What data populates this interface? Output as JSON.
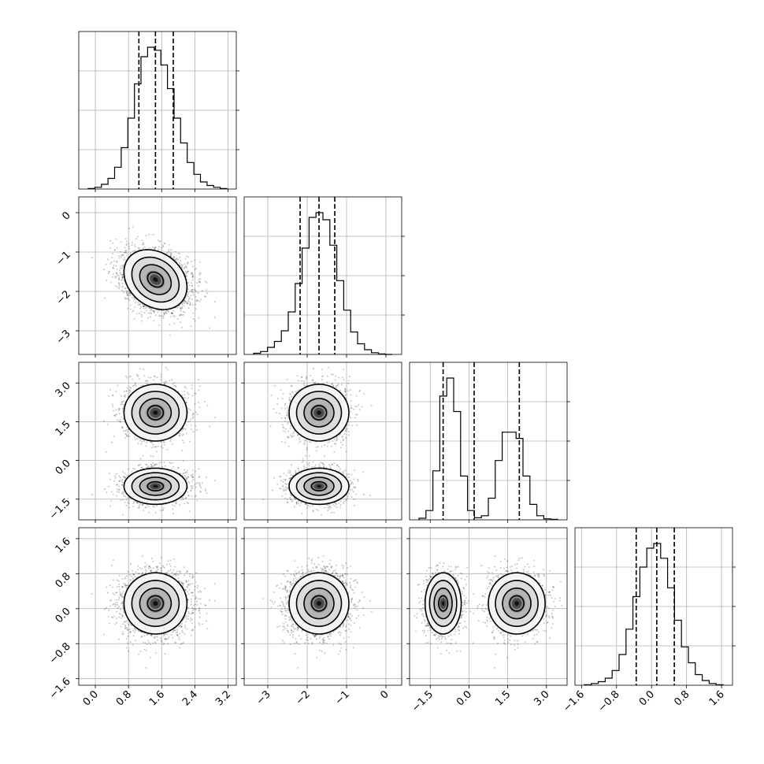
{
  "chart_data": {
    "type": "corner",
    "parameters": 4,
    "grid": true,
    "ranges": [
      [
        -0.4,
        3.4
      ],
      [
        -3.6,
        0.4
      ],
      [
        -2.3,
        3.8
      ],
      [
        -1.75,
        1.85
      ]
    ],
    "ticks": [
      {
        "values": [
          0.0,
          0.8,
          1.6,
          2.4,
          3.2
        ],
        "labels": [
          "0.0",
          "0.8",
          "1.6",
          "2.4",
          "3.2"
        ]
      },
      {
        "values": [
          -3,
          -2,
          -1,
          0
        ],
        "labels": [
          "−3",
          "−2",
          "−1",
          "0"
        ]
      },
      {
        "values": [
          -1.5,
          0.0,
          1.5,
          3.0
        ],
        "labels": [
          "−1.5",
          "0.0",
          "1.5",
          "3.0"
        ]
      },
      {
        "values": [
          -1.6,
          -0.8,
          0.0,
          0.8,
          1.6
        ],
        "labels": [
          "−1.6",
          "−0.8",
          "0.0",
          "0.8",
          "1.6"
        ]
      }
    ],
    "quantiles": [
      [
        1.05,
        1.45,
        1.88
      ],
      [
        -2.18,
        -1.7,
        -1.3
      ],
      [
        -1.0,
        0.2,
        1.95
      ],
      [
        -0.35,
        0.12,
        0.52
      ]
    ],
    "histograms": [
      {
        "counts": [
          1,
          3,
          8,
          18,
          37,
          70,
          120,
          178,
          224,
          240,
          235,
          210,
          170,
          120,
          78,
          45,
          25,
          12,
          6,
          3,
          1
        ]
      },
      {
        "counts": [
          2,
          5,
          12,
          22,
          40,
          72,
          120,
          180,
          232,
          240,
          228,
          185,
          125,
          75,
          38,
          18,
          8,
          3,
          1,
          0
        ]
      },
      {
        "counts": [
          3,
          18,
          95,
          240,
          275,
          210,
          85,
          18,
          4,
          8,
          42,
          115,
          170,
          170,
          158,
          85,
          30,
          8,
          2,
          1
        ]
      },
      {
        "counts": [
          1,
          3,
          6,
          12,
          25,
          52,
          95,
          150,
          200,
          232,
          240,
          215,
          165,
          110,
          65,
          38,
          18,
          8,
          3,
          1
        ]
      }
    ],
    "samples": {
      "modes": [
        {
          "weight": 0.5,
          "mean": [
            1.45,
            -1.7,
            1.85,
            0.12
          ],
          "sd": [
            0.38,
            0.38,
            0.55,
            0.35
          ],
          "rho01": -0.25
        },
        {
          "weight": 0.5,
          "mean": [
            1.45,
            -1.7,
            -1.0,
            0.12
          ],
          "sd": [
            0.38,
            0.38,
            0.35,
            0.35
          ],
          "rho01": -0.25
        }
      ],
      "count": 3200
    },
    "contour_levels": [
      0.39,
      0.86,
      1.0
    ]
  }
}
